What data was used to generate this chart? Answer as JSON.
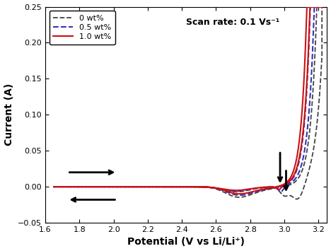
{
  "xlabel": "Potential (V vs Li/Li⁺)",
  "ylabel": "Current (A)",
  "xlim": [
    1.6,
    3.25
  ],
  "ylim": [
    -0.05,
    0.25
  ],
  "xticks": [
    1.6,
    1.8,
    2.0,
    2.2,
    2.4,
    2.6,
    2.8,
    3.0,
    3.2
  ],
  "xtick_labels": [
    "1.6",
    "1.8",
    "2.0",
    "2.2",
    "2.4",
    "2.6",
    "2.8",
    "3.0",
    "3.2"
  ],
  "yticks": [
    -0.05,
    0.0,
    0.05,
    0.1,
    0.15,
    0.2,
    0.25
  ],
  "scan_rate_text": "Scan rate: 0.1 Vs⁻¹",
  "legend_labels": [
    "0 wt%",
    "0.5 wt%",
    "1.0 wt%"
  ],
  "line_colors": [
    "#444444",
    "#3333bb",
    "#cc1111"
  ],
  "background_color": "#ffffff"
}
